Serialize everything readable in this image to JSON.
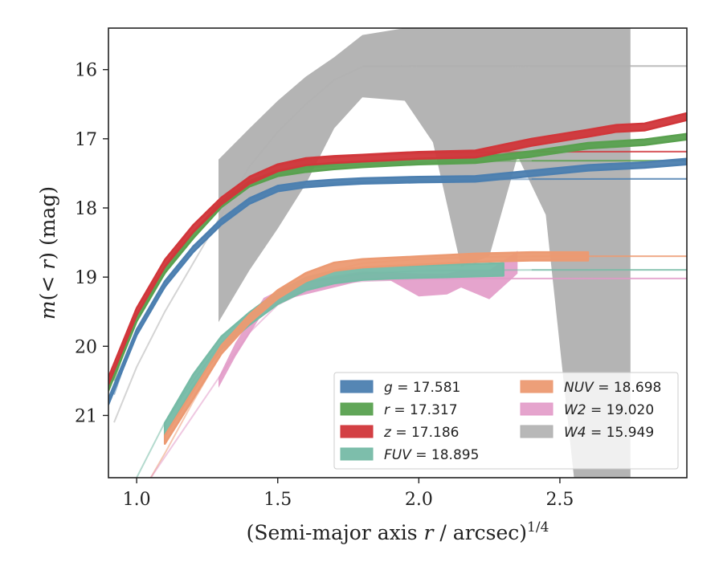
{
  "chart_data": {
    "type": "line",
    "title": "",
    "xlabel": "(Semi-major axis r / arcsec)^1/4",
    "ylabel": "m(< r) (mag)",
    "xlim": [
      0.9,
      2.95
    ],
    "ylim": [
      21.9,
      15.4
    ],
    "y_inverted": true,
    "grid": false,
    "legend_position": "lower-right",
    "x_ticks": [
      "1.0",
      "1.5",
      "2.0",
      "2.5"
    ],
    "y_ticks": [
      "16",
      "17",
      "18",
      "19",
      "20",
      "21"
    ],
    "series": [
      {
        "name": "g = 17.581",
        "band": "g",
        "value": "17.581",
        "color": "#4c7fb0",
        "kind": "optical",
        "x": [
          0.9,
          1.0,
          1.1,
          1.2,
          1.3,
          1.4,
          1.5,
          1.6,
          1.7,
          1.8,
          1.9,
          2.0,
          2.2,
          2.4,
          2.6,
          2.8,
          2.95
        ],
        "y": [
          20.8,
          19.8,
          19.1,
          18.6,
          18.2,
          17.9,
          17.72,
          17.66,
          17.63,
          17.61,
          17.6,
          17.59,
          17.58,
          17.5,
          17.42,
          17.38,
          17.33
        ],
        "err": 0.04,
        "asymptote": 17.581
      },
      {
        "name": "r = 17.317",
        "band": "r",
        "value": "17.317",
        "color": "#59a14f",
        "kind": "optical",
        "x": [
          0.9,
          1.0,
          1.1,
          1.2,
          1.3,
          1.4,
          1.5,
          1.6,
          1.7,
          1.8,
          1.9,
          2.0,
          2.2,
          2.4,
          2.6,
          2.8,
          2.95
        ],
        "y": [
          20.6,
          19.6,
          18.9,
          18.4,
          17.95,
          17.65,
          17.5,
          17.44,
          17.4,
          17.37,
          17.35,
          17.33,
          17.31,
          17.22,
          17.1,
          17.05,
          16.97
        ],
        "err": 0.04,
        "asymptote": 17.317
      },
      {
        "name": "z = 17.186",
        "band": "z",
        "value": "17.186",
        "color": "#d1363a",
        "kind": "optical",
        "x": [
          0.9,
          1.0,
          1.1,
          1.2,
          1.3,
          1.4,
          1.5,
          1.6,
          1.7,
          1.8,
          1.9,
          2.0,
          2.2,
          2.4,
          2.6,
          2.7,
          2.8,
          2.95
        ],
        "y": [
          20.5,
          19.5,
          18.8,
          18.3,
          17.9,
          17.6,
          17.42,
          17.33,
          17.3,
          17.28,
          17.26,
          17.24,
          17.22,
          17.05,
          16.92,
          16.85,
          16.83,
          16.68
        ],
        "err": 0.05,
        "asymptote": 17.186
      },
      {
        "name": "FUV = 18.895",
        "band": "FUV",
        "value": "18.895",
        "color": "#76bba6",
        "kind": "uv",
        "x": [
          1.1,
          1.2,
          1.3,
          1.4,
          1.5,
          1.6,
          1.7,
          1.8,
          1.9,
          2.0,
          2.1,
          2.2,
          2.3
        ],
        "y": [
          21.2,
          20.5,
          19.95,
          19.6,
          19.3,
          19.1,
          19.0,
          18.95,
          18.93,
          18.92,
          18.91,
          18.9,
          18.89
        ],
        "err": 0.09,
        "asymptote": 18.895
      },
      {
        "name": "NUV = 18.698",
        "band": "NUV",
        "value": "18.698",
        "color": "#ec9a72",
        "kind": "uv",
        "x": [
          1.1,
          1.2,
          1.3,
          1.4,
          1.5,
          1.6,
          1.7,
          1.8,
          1.9,
          2.0,
          2.1,
          2.2,
          2.3,
          2.4,
          2.5,
          2.6
        ],
        "y": [
          21.35,
          20.7,
          20.05,
          19.6,
          19.25,
          19.0,
          18.85,
          18.8,
          18.78,
          18.76,
          18.74,
          18.72,
          18.71,
          18.7,
          18.7,
          18.7
        ],
        "err": 0.06,
        "asymptote": 18.698
      },
      {
        "name": "W2 = 19.020",
        "band": "W2",
        "value": "19.020",
        "color": "#e29ac8",
        "kind": "wise",
        "x": [
          1.29,
          1.35,
          1.45,
          1.55,
          1.7,
          1.8,
          1.9,
          2.0,
          2.1,
          2.15,
          2.25,
          2.35
        ],
        "y_low": [
          20.6,
          20.15,
          19.5,
          19.3,
          19.15,
          19.05,
          19.05,
          19.28,
          19.25,
          19.15,
          19.32,
          18.95
        ],
        "y_high": [
          20.45,
          19.95,
          19.3,
          19.1,
          18.98,
          18.92,
          18.93,
          18.95,
          18.95,
          18.9,
          18.9,
          18.62
        ],
        "asymptote": 19.02
      },
      {
        "name": "W4 = 15.949",
        "band": "W4",
        "value": "15.949",
        "color": "#b0b0b0",
        "kind": "wise",
        "x": [
          1.29,
          1.4,
          1.5,
          1.6,
          1.7,
          1.8,
          1.95,
          2.05,
          2.15,
          2.25,
          2.35,
          2.45,
          2.55,
          2.75
        ],
        "y_low": [
          19.65,
          18.9,
          18.3,
          17.65,
          16.85,
          16.4,
          16.45,
          17.05,
          18.85,
          18.7,
          17.25,
          18.1,
          21.9,
          21.9
        ],
        "y_high": [
          17.3,
          16.85,
          16.45,
          16.1,
          15.82,
          15.5,
          15.4,
          15.4,
          15.4,
          15.4,
          15.4,
          15.4,
          15.4,
          15.4
        ],
        "asymptote": 15.949
      }
    ],
    "extrapolated_curves": [
      {
        "band": "g",
        "x": [
          0.92,
          1.0,
          1.2,
          1.4,
          1.5,
          1.6,
          1.8,
          2.0,
          2.2,
          2.4,
          2.6,
          2.8,
          2.95
        ],
        "y": [
          20.7,
          19.75,
          18.55,
          17.88,
          17.72,
          17.66,
          17.62,
          17.6,
          17.59,
          17.585,
          17.582,
          17.58,
          17.58
        ]
      },
      {
        "band": "r",
        "x": [
          0.92,
          1.0,
          1.2,
          1.4,
          1.5,
          1.6,
          1.8,
          2.0,
          2.2,
          2.4,
          2.6,
          2.8,
          2.95
        ],
        "y": [
          20.5,
          19.55,
          18.35,
          17.62,
          17.48,
          17.42,
          17.37,
          17.34,
          17.325,
          17.32,
          17.318,
          17.317,
          17.317
        ]
      },
      {
        "band": "z",
        "x": [
          0.92,
          1.0,
          1.2,
          1.4,
          1.5,
          1.6,
          1.8,
          2.0,
          2.2,
          2.4,
          2.6,
          2.8,
          2.95
        ],
        "y": [
          20.4,
          19.45,
          18.25,
          17.55,
          17.38,
          17.3,
          17.24,
          17.21,
          17.195,
          17.19,
          17.187,
          17.186,
          17.186
        ]
      },
      {
        "band": "FUV",
        "x": [
          1.0,
          1.1,
          1.2,
          1.3,
          1.4,
          1.5,
          1.6,
          1.8,
          2.0,
          2.2,
          2.4,
          2.6,
          2.8,
          2.95
        ],
        "y": [
          21.9,
          21.1,
          20.5,
          19.95,
          19.55,
          19.25,
          19.08,
          18.95,
          18.91,
          18.9,
          18.897,
          18.896,
          18.895,
          18.895
        ]
      },
      {
        "band": "NUV",
        "x": [
          1.05,
          1.1,
          1.2,
          1.3,
          1.4,
          1.5,
          1.6,
          1.8,
          2.0,
          2.2,
          2.4,
          2.6,
          2.8,
          2.95
        ],
        "y": [
          21.9,
          21.55,
          20.8,
          20.1,
          19.6,
          19.25,
          19.0,
          18.8,
          18.74,
          18.71,
          18.7,
          18.699,
          18.698,
          18.698
        ]
      },
      {
        "band": "W2",
        "x": [
          1.05,
          1.1,
          1.2,
          1.3,
          1.4,
          1.5,
          1.6,
          1.7,
          1.8,
          2.0,
          2.4,
          2.8,
          2.95
        ],
        "y": [
          21.9,
          21.6,
          21.0,
          20.4,
          19.8,
          19.4,
          19.2,
          19.1,
          19.06,
          19.03,
          19.022,
          19.02,
          19.02
        ]
      },
      {
        "band": "W4",
        "x": [
          0.92,
          1.0,
          1.1,
          1.2,
          1.3,
          1.4,
          1.5,
          1.6,
          1.7,
          1.8,
          2.0,
          2.4,
          2.95
        ],
        "y": [
          21.1,
          20.3,
          19.5,
          18.8,
          18.1,
          17.4,
          16.9,
          16.5,
          16.15,
          15.96,
          15.95,
          15.949,
          15.949
        ]
      }
    ]
  }
}
